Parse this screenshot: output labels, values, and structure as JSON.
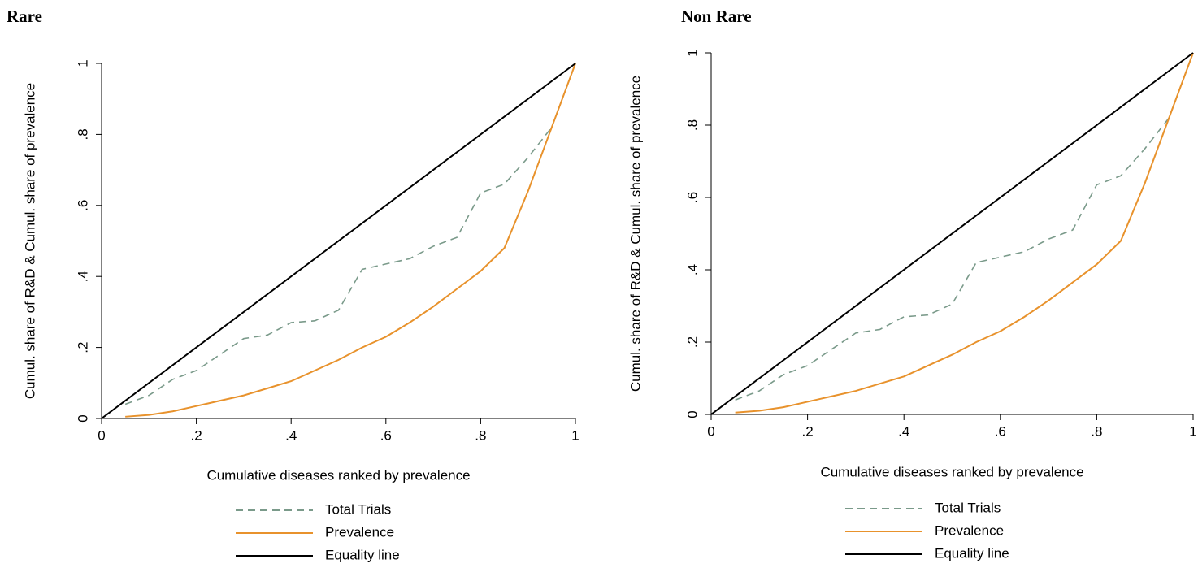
{
  "chart_data": [
    {
      "type": "line",
      "title": "Rare",
      "xlabel": "Cumulative diseases ranked by prevalence",
      "ylabel": "Cumul. share of R&D & Cumul. share of prevalence",
      "xlim": [
        0,
        1
      ],
      "ylim": [
        0,
        1
      ],
      "xticks": [
        0,
        {
          "value": 0.2,
          "label": ".2"
        },
        {
          "value": 0.4,
          "label": ".4"
        },
        {
          "value": 0.6,
          "label": ".6"
        },
        {
          "value": 0.8,
          "label": ".8"
        },
        1
      ],
      "yticks": [
        0,
        {
          "value": 0.2,
          "label": ".2"
        },
        {
          "value": 0.4,
          "label": ".4"
        },
        {
          "value": 0.6,
          "label": ".6"
        },
        {
          "value": 0.8,
          "label": ".8"
        },
        1
      ],
      "legend": "bottom",
      "series": [
        {
          "name": "Total Trials",
          "color": "#7a9a8a",
          "linestyle": "dashed",
          "x": [
            0.05,
            0.1,
            0.15,
            0.2,
            0.25,
            0.3,
            0.35,
            0.4,
            0.45,
            0.5,
            0.55,
            0.6,
            0.65,
            0.7,
            0.75,
            0.8,
            0.85,
            0.9,
            0.95,
            1
          ],
          "values": [
            0.04,
            0.065,
            0.11,
            0.135,
            0.18,
            0.225,
            0.235,
            0.27,
            0.275,
            0.305,
            0.42,
            0.435,
            0.45,
            0.485,
            0.51,
            0.635,
            0.66,
            0.735,
            0.82,
            1
          ]
        },
        {
          "name": "Prevalence",
          "color": "#e8922c",
          "linestyle": "solid",
          "x": [
            0.05,
            0.1,
            0.15,
            0.2,
            0.25,
            0.3,
            0.35,
            0.4,
            0.45,
            0.5,
            0.55,
            0.6,
            0.65,
            0.7,
            0.75,
            0.8,
            0.85,
            0.9,
            0.95,
            1
          ],
          "values": [
            0.005,
            0.01,
            0.02,
            0.035,
            0.05,
            0.065,
            0.085,
            0.105,
            0.135,
            0.165,
            0.2,
            0.23,
            0.27,
            0.315,
            0.365,
            0.415,
            0.48,
            0.64,
            0.82,
            1
          ]
        },
        {
          "name": "Equality line",
          "color": "#000000",
          "linestyle": "solid",
          "x": [
            0,
            1
          ],
          "values": [
            0,
            1
          ]
        }
      ]
    },
    {
      "type": "line",
      "title": "Non Rare",
      "xlabel": "Cumulative diseases ranked by prevalence",
      "ylabel": "Cumul. share of R&D & Cumul. share of prevalence",
      "xlim": [
        0,
        1
      ],
      "ylim": [
        0,
        1
      ],
      "xticks": [
        0,
        {
          "value": 0.2,
          "label": ".2"
        },
        {
          "value": 0.4,
          "label": ".4"
        },
        {
          "value": 0.6,
          "label": ".6"
        },
        {
          "value": 0.8,
          "label": ".8"
        },
        1
      ],
      "yticks": [
        0,
        {
          "value": 0.2,
          "label": ".2"
        },
        {
          "value": 0.4,
          "label": ".4"
        },
        {
          "value": 0.6,
          "label": ".6"
        },
        {
          "value": 0.8,
          "label": ".8"
        },
        1
      ],
      "legend": "bottom",
      "series": [
        {
          "name": "Total Trials",
          "color": "#7a9a8a",
          "linestyle": "dashed",
          "x": [
            0.05,
            0.1,
            0.15,
            0.2,
            0.25,
            0.3,
            0.35,
            0.4,
            0.45,
            0.5,
            0.55,
            0.6,
            0.65,
            0.7,
            0.75,
            0.8,
            0.85,
            0.9,
            0.95,
            1
          ],
          "values": [
            0.04,
            0.065,
            0.11,
            0.135,
            0.18,
            0.225,
            0.235,
            0.27,
            0.275,
            0.305,
            0.42,
            0.435,
            0.45,
            0.485,
            0.51,
            0.635,
            0.66,
            0.735,
            0.82,
            1
          ]
        },
        {
          "name": "Prevalence",
          "color": "#e8922c",
          "linestyle": "solid",
          "x": [
            0.05,
            0.1,
            0.15,
            0.2,
            0.25,
            0.3,
            0.35,
            0.4,
            0.45,
            0.5,
            0.55,
            0.6,
            0.65,
            0.7,
            0.75,
            0.8,
            0.85,
            0.9,
            0.95,
            1
          ],
          "values": [
            0.005,
            0.01,
            0.02,
            0.035,
            0.05,
            0.065,
            0.085,
            0.105,
            0.135,
            0.165,
            0.2,
            0.23,
            0.27,
            0.315,
            0.365,
            0.415,
            0.48,
            0.64,
            0.82,
            1
          ]
        },
        {
          "name": "Equality line",
          "color": "#000000",
          "linestyle": "solid",
          "x": [
            0,
            1
          ],
          "values": [
            0,
            1
          ]
        }
      ]
    }
  ]
}
